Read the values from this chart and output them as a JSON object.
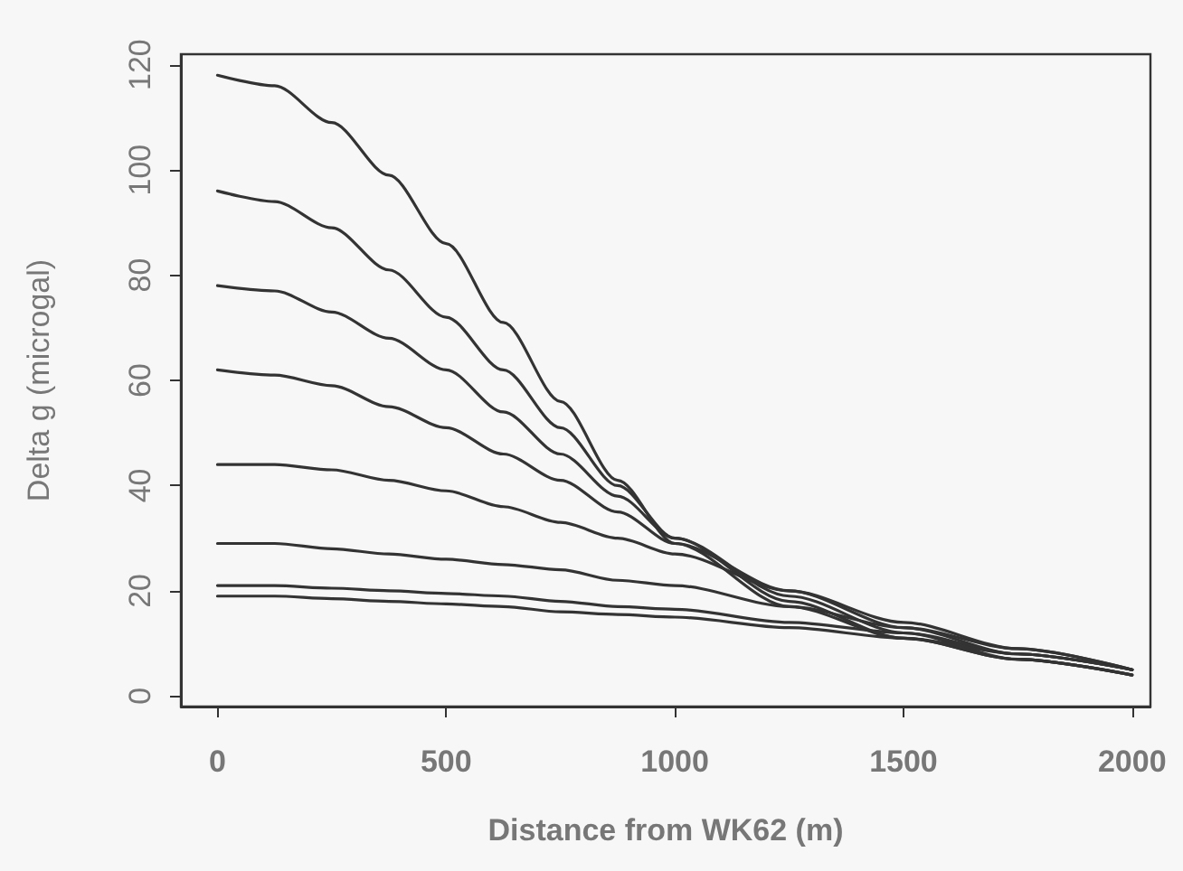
{
  "chart_data": {
    "type": "line",
    "xlabel": "Distance from WK62 (m)",
    "ylabel": "Delta g (microgal)",
    "x": [
      0,
      125,
      250,
      375,
      500,
      625,
      750,
      875,
      1000,
      1250,
      1500,
      1750,
      2000
    ],
    "series": [
      {
        "color": "#333333",
        "values": [
          118,
          116,
          109,
          99,
          86,
          71,
          56,
          41,
          29,
          17,
          11,
          7,
          4
        ]
      },
      {
        "color": "#333333",
        "values": [
          96,
          94,
          89,
          81,
          72,
          62,
          51,
          40,
          30,
          18,
          11,
          7,
          4
        ]
      },
      {
        "color": "#333333",
        "values": [
          78,
          77,
          73,
          68,
          62,
          54,
          46,
          38,
          30,
          19,
          12,
          7,
          4
        ]
      },
      {
        "color": "#333333",
        "values": [
          62,
          61,
          59,
          55,
          51,
          46,
          41,
          35,
          29,
          20,
          13,
          8,
          5
        ]
      },
      {
        "color": "#333333",
        "values": [
          44,
          44,
          43,
          41,
          39,
          36,
          33,
          30,
          27,
          20,
          14,
          9,
          5
        ]
      },
      {
        "color": "#333333",
        "values": [
          29,
          29,
          28,
          27,
          26,
          25,
          24,
          22,
          21,
          17,
          13,
          9,
          5
        ]
      },
      {
        "color": "#333333",
        "values": [
          21,
          21,
          20.5,
          20,
          19.5,
          19,
          18,
          17,
          16.5,
          14,
          12,
          8,
          5
        ]
      },
      {
        "color": "#333333",
        "values": [
          19,
          19,
          18.5,
          18,
          17.5,
          17,
          16,
          15.5,
          15,
          13,
          11,
          8,
          5
        ]
      }
    ],
    "xlim": [
      -80,
      2040
    ],
    "ylim": [
      -2,
      122
    ],
    "xticks": [
      0,
      500,
      1000,
      1500,
      2000
    ],
    "yticks": [
      0,
      20,
      40,
      60,
      80,
      100,
      120
    ],
    "grid": false,
    "marker": "none",
    "line_style": "solid"
  }
}
